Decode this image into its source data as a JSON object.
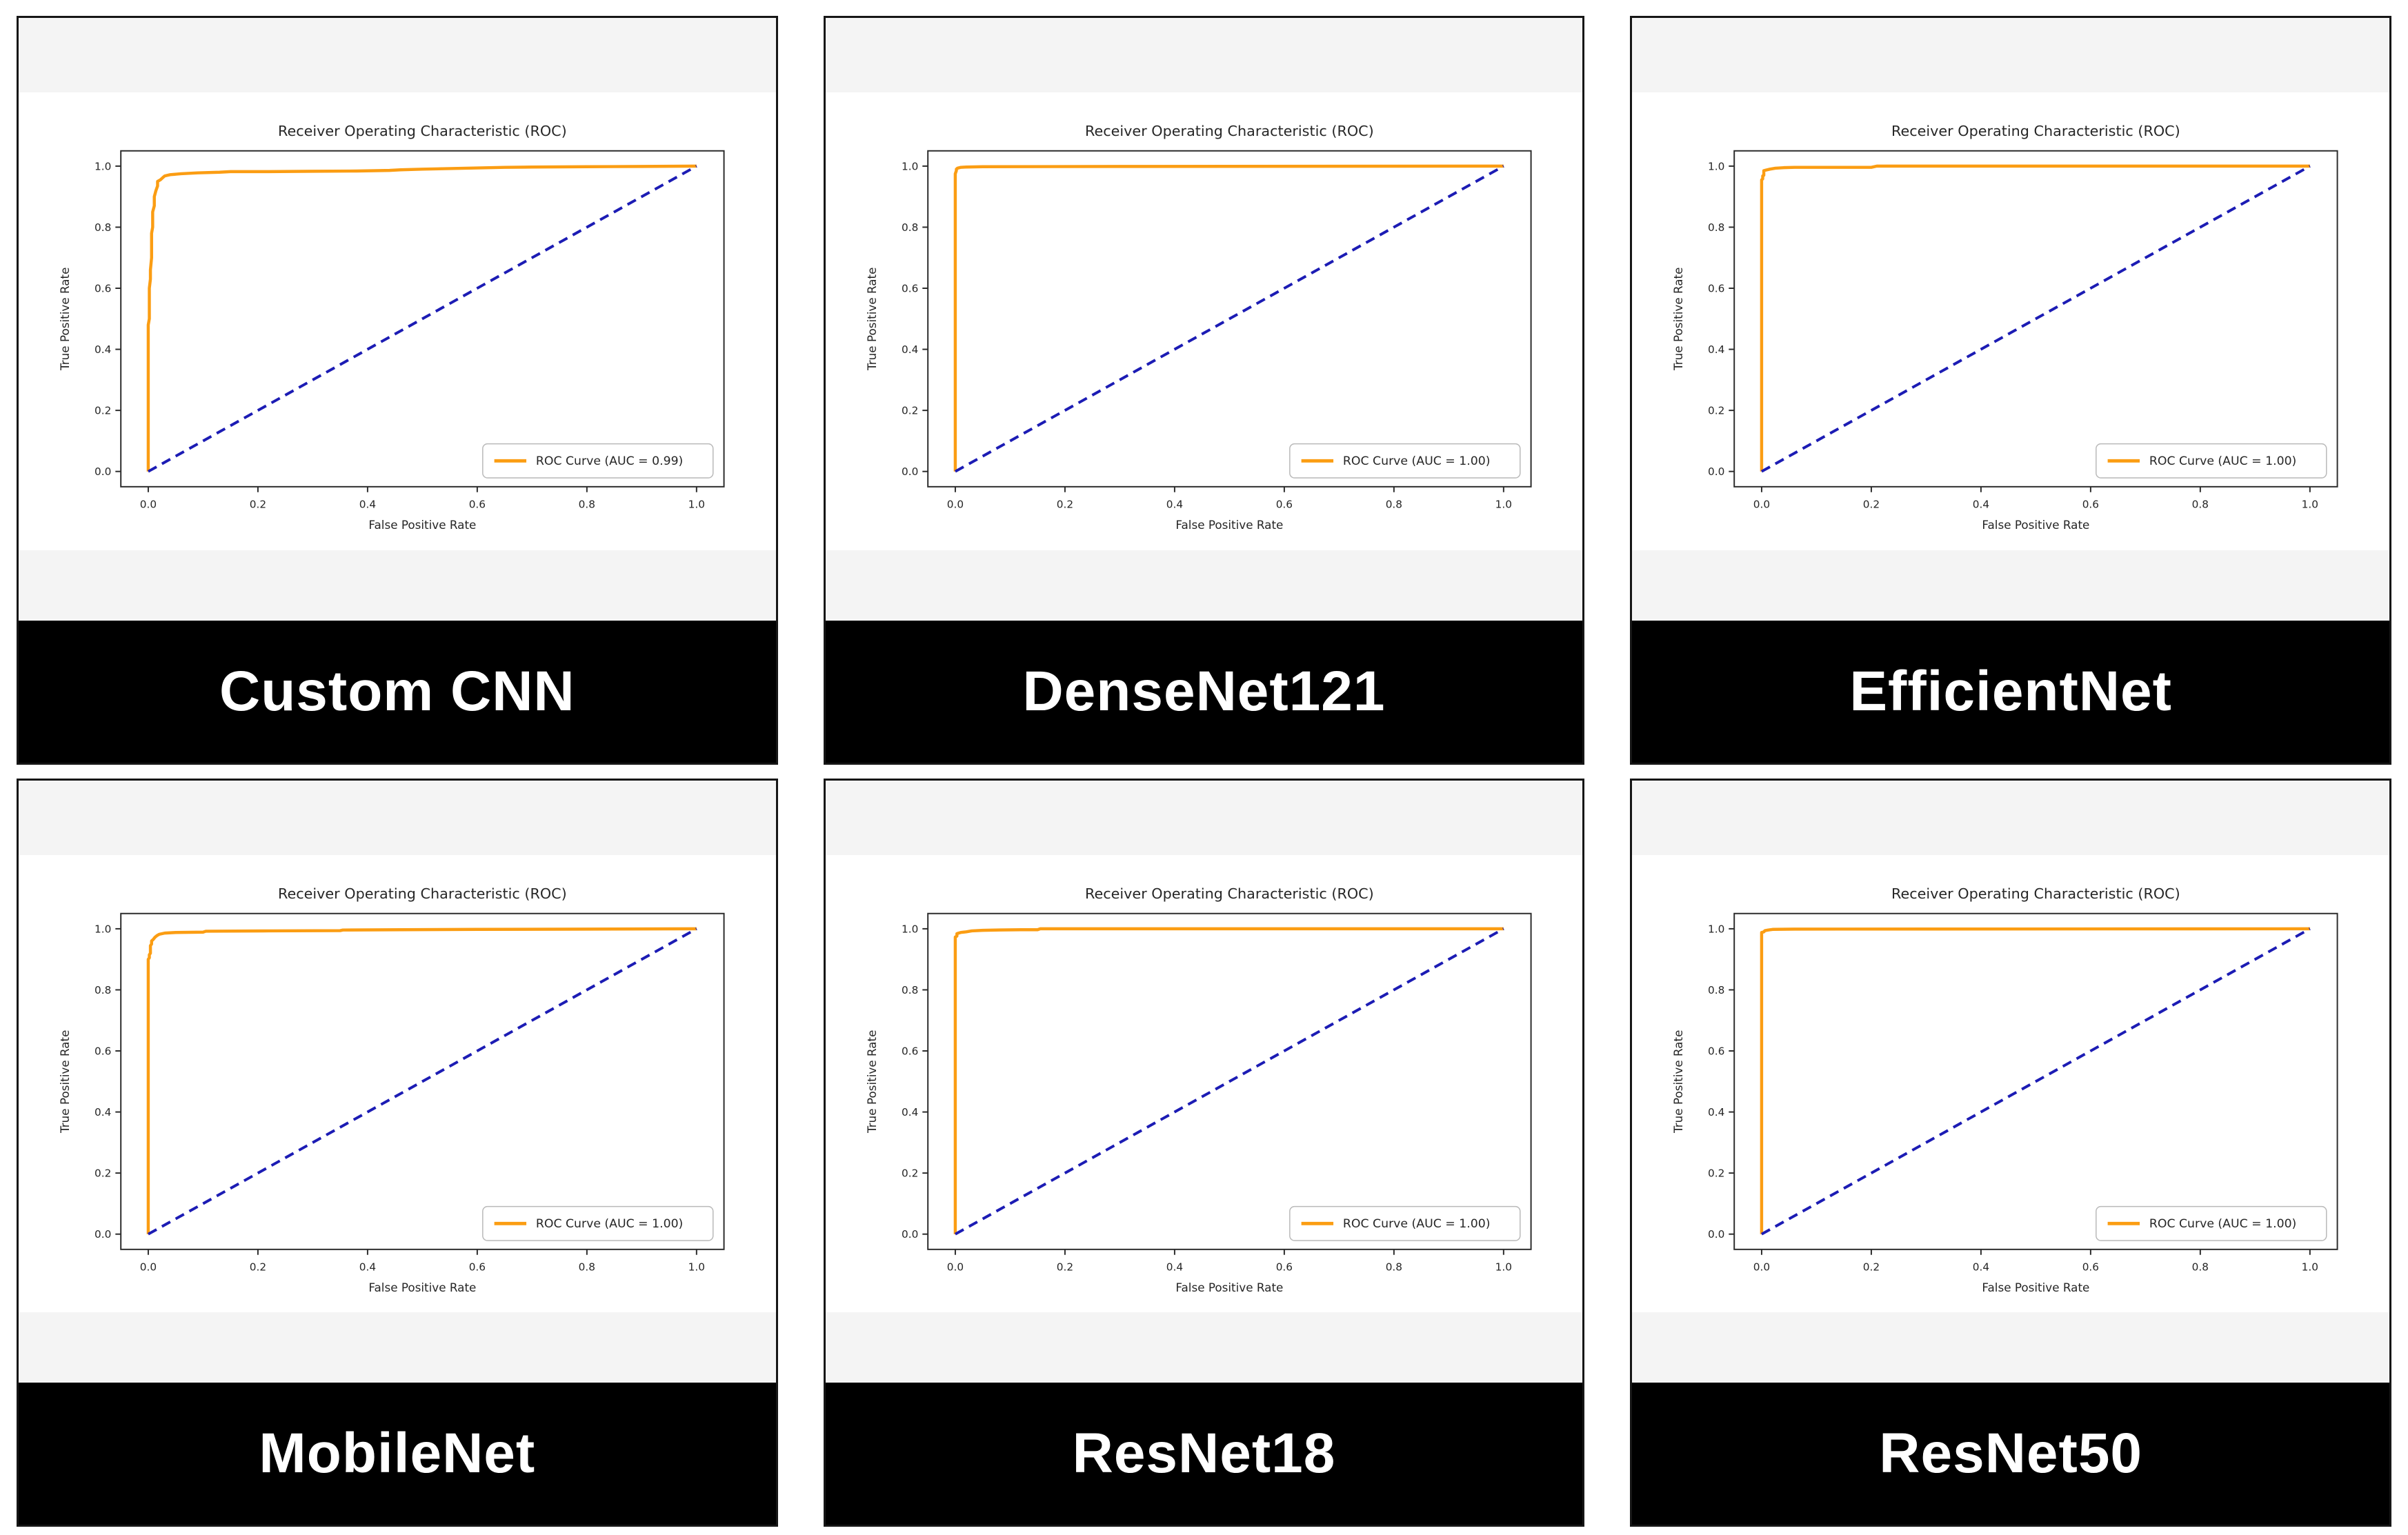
{
  "figure": {
    "layout": "2 rows x 3 columns",
    "panel_count": 6
  },
  "style": {
    "roc_color": "#fb9d13",
    "diagonal_color": "#1c1cb4",
    "spine_color": "#2b2b2b",
    "text_color": "#262626",
    "strip_color": "#f4f4f4",
    "banner_bg": "#000000",
    "banner_text": "#ffffff",
    "legend_border": "#b9b9b9"
  },
  "chart_data": [
    {
      "type": "line",
      "model": "Custom CNN",
      "title": "Receiver Operating Characteristic (ROC)",
      "xlabel": "False Positive Rate",
      "ylabel": "True Positive Rate",
      "xlim": [
        -0.05,
        1.05
      ],
      "ylim": [
        -0.05,
        1.05
      ],
      "xticks": [
        0.0,
        0.2,
        0.4,
        0.6,
        0.8,
        1.0
      ],
      "yticks": [
        0.0,
        0.2,
        0.4,
        0.6,
        0.8,
        1.0
      ],
      "auc": 0.99,
      "legend_label": "ROC Curve (AUC = 0.99)",
      "legend_position": "lower right",
      "series": [
        {
          "name": "ROC Curve",
          "role": "roc",
          "points": [
            [
              0,
              0
            ],
            [
              0,
              0.48
            ],
            [
              0.002,
              0.5
            ],
            [
              0.002,
              0.6
            ],
            [
              0.004,
              0.63
            ],
            [
              0.004,
              0.66
            ],
            [
              0.006,
              0.7
            ],
            [
              0.006,
              0.78
            ],
            [
              0.008,
              0.8
            ],
            [
              0.008,
              0.85
            ],
            [
              0.011,
              0.87
            ],
            [
              0.011,
              0.9
            ],
            [
              0.014,
              0.92
            ],
            [
              0.017,
              0.935
            ],
            [
              0.017,
              0.95
            ],
            [
              0.022,
              0.955
            ],
            [
              0.027,
              0.963
            ],
            [
              0.03,
              0.968
            ],
            [
              0.04,
              0.972
            ],
            [
              0.06,
              0.975
            ],
            [
              0.09,
              0.978
            ],
            [
              0.13,
              0.98
            ],
            [
              0.15,
              0.982
            ],
            [
              0.22,
              0.982
            ],
            [
              0.3,
              0.983
            ],
            [
              0.38,
              0.984
            ],
            [
              0.44,
              0.986
            ],
            [
              0.46,
              0.988
            ],
            [
              0.5,
              0.99
            ],
            [
              0.55,
              0.992
            ],
            [
              0.6,
              0.994
            ],
            [
              0.65,
              0.996
            ],
            [
              0.7,
              0.997
            ],
            [
              0.8,
              0.998
            ],
            [
              0.9,
              0.999
            ],
            [
              1,
              1
            ]
          ]
        },
        {
          "name": "Chance diagonal",
          "role": "diagonal",
          "points": [
            [
              0,
              0
            ],
            [
              1,
              1
            ]
          ]
        }
      ]
    },
    {
      "type": "line",
      "model": "DenseNet121",
      "title": "Receiver Operating Characteristic (ROC)",
      "xlabel": "False Positive Rate",
      "ylabel": "True Positive Rate",
      "xlim": [
        -0.05,
        1.05
      ],
      "ylim": [
        -0.05,
        1.05
      ],
      "xticks": [
        0.0,
        0.2,
        0.4,
        0.6,
        0.8,
        1.0
      ],
      "yticks": [
        0.0,
        0.2,
        0.4,
        0.6,
        0.8,
        1.0
      ],
      "auc": 1.0,
      "legend_label": "ROC Curve (AUC = 1.00)",
      "legend_position": "lower right",
      "series": [
        {
          "name": "ROC Curve",
          "role": "roc",
          "points": [
            [
              0,
              0
            ],
            [
              0,
              0.975
            ],
            [
              0.002,
              0.985
            ],
            [
              0.002,
              0.99
            ],
            [
              0.004,
              0.993
            ],
            [
              0.01,
              0.996
            ],
            [
              0.02,
              0.997
            ],
            [
              0.05,
              0.998
            ],
            [
              0.3,
              0.999
            ],
            [
              1,
              1
            ]
          ]
        },
        {
          "name": "Chance diagonal",
          "role": "diagonal",
          "points": [
            [
              0,
              0
            ],
            [
              1,
              1
            ]
          ]
        }
      ]
    },
    {
      "type": "line",
      "model": "EfficientNet",
      "title": "Receiver Operating Characteristic (ROC)",
      "xlabel": "False Positive Rate",
      "ylabel": "True Positive Rate",
      "xlim": [
        -0.05,
        1.05
      ],
      "ylim": [
        -0.05,
        1.05
      ],
      "xticks": [
        0.0,
        0.2,
        0.4,
        0.6,
        0.8,
        1.0
      ],
      "yticks": [
        0.0,
        0.2,
        0.4,
        0.6,
        0.8,
        1.0
      ],
      "auc": 1.0,
      "legend_label": "ROC Curve (AUC = 1.00)",
      "legend_position": "lower right",
      "series": [
        {
          "name": "ROC Curve",
          "role": "roc",
          "points": [
            [
              0,
              0
            ],
            [
              0,
              0.955
            ],
            [
              0.002,
              0.958
            ],
            [
              0.002,
              0.968
            ],
            [
              0.004,
              0.97
            ],
            [
              0.004,
              0.985
            ],
            [
              0.008,
              0.987
            ],
            [
              0.015,
              0.99
            ],
            [
              0.025,
              0.993
            ],
            [
              0.04,
              0.995
            ],
            [
              0.06,
              0.996
            ],
            [
              0.2,
              0.996
            ],
            [
              0.21,
              1.0
            ],
            [
              1,
              1
            ]
          ]
        },
        {
          "name": "Chance diagonal",
          "role": "diagonal",
          "points": [
            [
              0,
              0
            ],
            [
              1,
              1
            ]
          ]
        }
      ]
    },
    {
      "type": "line",
      "model": "MobileNet",
      "title": "Receiver Operating Characteristic (ROC)",
      "xlabel": "False Positive Rate",
      "ylabel": "True Positive Rate",
      "xlim": [
        -0.05,
        1.05
      ],
      "ylim": [
        -0.05,
        1.05
      ],
      "xticks": [
        0.0,
        0.2,
        0.4,
        0.6,
        0.8,
        1.0
      ],
      "yticks": [
        0.0,
        0.2,
        0.4,
        0.6,
        0.8,
        1.0
      ],
      "auc": 1.0,
      "legend_label": "ROC Curve (AUC = 1.00)",
      "legend_position": "lower right",
      "series": [
        {
          "name": "ROC Curve",
          "role": "roc",
          "points": [
            [
              0,
              0
            ],
            [
              0,
              0.9
            ],
            [
              0.002,
              0.905
            ],
            [
              0.002,
              0.915
            ],
            [
              0.004,
              0.92
            ],
            [
              0.004,
              0.945
            ],
            [
              0.006,
              0.95
            ],
            [
              0.006,
              0.96
            ],
            [
              0.009,
              0.965
            ],
            [
              0.012,
              0.972
            ],
            [
              0.016,
              0.978
            ],
            [
              0.02,
              0.982
            ],
            [
              0.03,
              0.986
            ],
            [
              0.05,
              0.988
            ],
            [
              0.1,
              0.989
            ],
            [
              0.105,
              0.992
            ],
            [
              0.22,
              0.993
            ],
            [
              0.35,
              0.994
            ],
            [
              0.355,
              0.996
            ],
            [
              0.46,
              0.997
            ],
            [
              0.6,
              0.998
            ],
            [
              0.8,
              0.999
            ],
            [
              1,
              1
            ]
          ]
        },
        {
          "name": "Chance diagonal",
          "role": "diagonal",
          "points": [
            [
              0,
              0
            ],
            [
              1,
              1
            ]
          ]
        }
      ]
    },
    {
      "type": "line",
      "model": "ResNet18",
      "title": "Receiver Operating Characteristic (ROC)",
      "xlabel": "False Positive Rate",
      "ylabel": "True Positive Rate",
      "xlim": [
        -0.05,
        1.05
      ],
      "ylim": [
        -0.05,
        1.05
      ],
      "xticks": [
        0.0,
        0.2,
        0.4,
        0.6,
        0.8,
        1.0
      ],
      "yticks": [
        0.0,
        0.2,
        0.4,
        0.6,
        0.8,
        1.0
      ],
      "auc": 1.0,
      "legend_label": "ROC Curve (AUC = 1.00)",
      "legend_position": "lower right",
      "series": [
        {
          "name": "ROC Curve",
          "role": "roc",
          "points": [
            [
              0,
              0
            ],
            [
              0,
              0.973
            ],
            [
              0.003,
              0.976
            ],
            [
              0.003,
              0.984
            ],
            [
              0.006,
              0.986
            ],
            [
              0.01,
              0.988
            ],
            [
              0.02,
              0.99
            ],
            [
              0.03,
              0.993
            ],
            [
              0.05,
              0.995
            ],
            [
              0.08,
              0.996
            ],
            [
              0.12,
              0.997
            ],
            [
              0.15,
              0.997
            ],
            [
              0.155,
              1.0
            ],
            [
              1,
              1
            ]
          ]
        },
        {
          "name": "Chance diagonal",
          "role": "diagonal",
          "points": [
            [
              0,
              0
            ],
            [
              1,
              1
            ]
          ]
        }
      ]
    },
    {
      "type": "line",
      "model": "ResNet50",
      "title": "Receiver Operating Characteristic (ROC)",
      "xlabel": "False Positive Rate",
      "ylabel": "True Positive Rate",
      "xlim": [
        -0.05,
        1.05
      ],
      "ylim": [
        -0.05,
        1.05
      ],
      "xticks": [
        0.0,
        0.2,
        0.4,
        0.6,
        0.8,
        1.0
      ],
      "yticks": [
        0.0,
        0.2,
        0.4,
        0.6,
        0.8,
        1.0
      ],
      "auc": 1.0,
      "legend_label": "ROC Curve (AUC = 1.00)",
      "legend_position": "lower right",
      "series": [
        {
          "name": "ROC Curve",
          "role": "roc",
          "points": [
            [
              0,
              0
            ],
            [
              0,
              0.988
            ],
            [
              0.004,
              0.99
            ],
            [
              0.006,
              0.994
            ],
            [
              0.012,
              0.996
            ],
            [
              0.02,
              0.998
            ],
            [
              0.06,
              0.999
            ],
            [
              1,
              1
            ]
          ]
        },
        {
          "name": "Chance diagonal",
          "role": "diagonal",
          "points": [
            [
              0,
              0
            ],
            [
              1,
              1
            ]
          ]
        }
      ]
    }
  ]
}
